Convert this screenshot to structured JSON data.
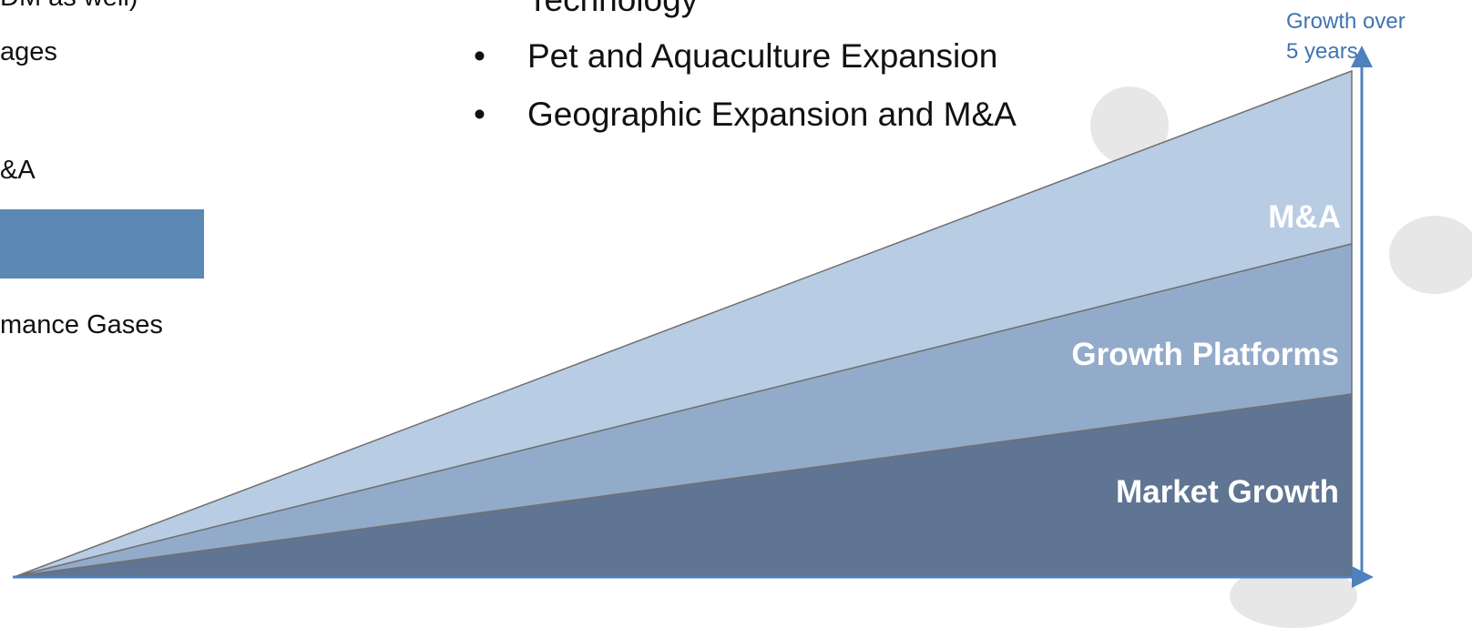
{
  "left_column": {
    "line1": "DM as well)",
    "line2": "ages",
    "line3": "&A",
    "line4": "mance Gases"
  },
  "bullets": [
    {
      "label": "Technology"
    },
    {
      "label": "Pet and Aquaculture Expansion"
    },
    {
      "label": "Geographic Expansion and M&A"
    }
  ],
  "bullet_symbol": "•",
  "diagram": {
    "axis_label_line1": "Growth over",
    "axis_label_line2": "5 years",
    "bands": [
      {
        "label": "M&A",
        "color": "#b8cce3"
      },
      {
        "label": "Growth Platforms",
        "color": "#93abca"
      },
      {
        "label": "Market Growth",
        "color": "#5f7593"
      }
    ],
    "axis_color": "#4f81bd"
  }
}
